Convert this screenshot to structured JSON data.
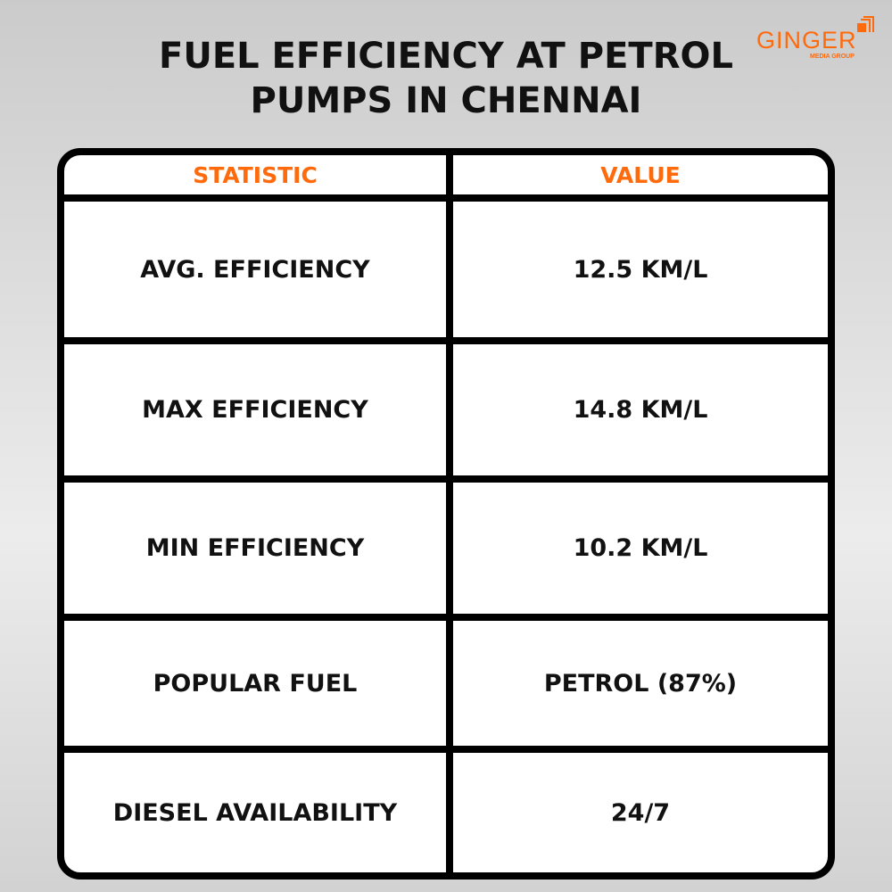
{
  "title": "FUEL EFFICIENCY AT PETROL PUMPS IN CHENNAI",
  "logo": {
    "name": "GINGER",
    "subtitle": "MEDIA GROUP"
  },
  "colors": {
    "accent": "#ff6a0c",
    "border": "#000000"
  },
  "table": {
    "headers": [
      "STATISTIC",
      "VALUE"
    ],
    "rows": [
      [
        "AVG. EFFICIENCY",
        "12.5 KM/L"
      ],
      [
        "MAX EFFICIENCY",
        "14.8 KM/L"
      ],
      [
        "MIN EFFICIENCY",
        "10.2 KM/L"
      ],
      [
        "POPULAR FUEL",
        "PETROL (87%)"
      ],
      [
        "DIESEL AVAILABILITY",
        "24/7"
      ]
    ]
  }
}
